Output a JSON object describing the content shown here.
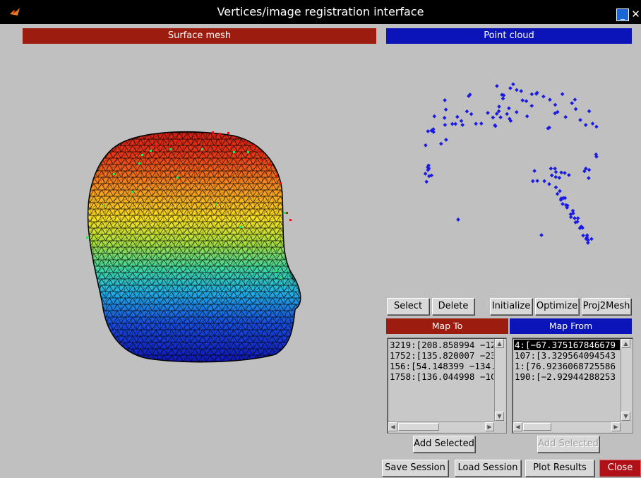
{
  "window": {
    "title": "Vertices/image registration interface",
    "min_label": "_",
    "close_label": "✕"
  },
  "panels": {
    "surface_mesh": "Surface mesh",
    "point_cloud": "Point cloud"
  },
  "toolbar": {
    "select": "Select",
    "delete": "Delete",
    "initialize": "Initialize",
    "optimize": "Optimize",
    "proj2mesh": "Proj2Mesh"
  },
  "lists": {
    "map_to": {
      "header": "Map To",
      "items": [
        "3219:[208.858994 −12",
        "1752:[135.820007 −23",
        "156:[54.148399 −134.",
        "1758:[136.044998 −1C"
      ]
    },
    "map_from": {
      "header": "Map From",
      "items": [
        "4:[−67.375167846679",
        "107:[3.329564094543",
        "1:[76.9236068725586",
        "190:[−2.92944288253"
      ],
      "selected_index": 0
    }
  },
  "add_selected": {
    "left": "Add Selected",
    "right": "Add Selected"
  },
  "footer": {
    "save_session": "Save Session",
    "load_session": "Load Session",
    "plot_results": "Plot Results",
    "close": "Close"
  },
  "colors": {
    "red_bar": "#9c1c10",
    "blue_bar": "#0a14b8",
    "point": "#1a1ae6"
  }
}
